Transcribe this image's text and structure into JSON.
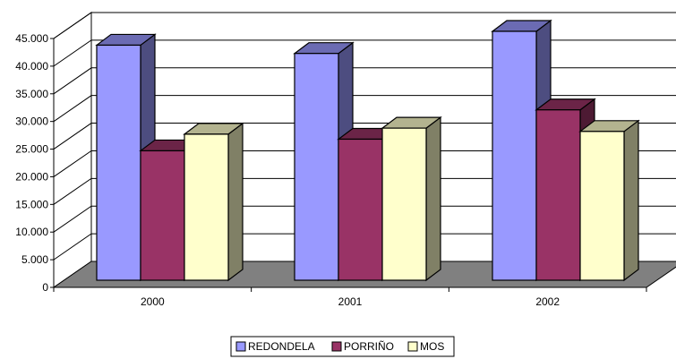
{
  "chart_data": {
    "type": "bar",
    "categories": [
      "2000",
      "2001",
      "2002"
    ],
    "series": [
      {
        "name": "REDONDELA",
        "values": [
          42500,
          41000,
          45000
        ],
        "color": "#9999FF"
      },
      {
        "name": "PORRIÑO",
        "values": [
          23400,
          25500,
          30800
        ],
        "color": "#993366"
      },
      {
        "name": "MOS",
        "values": [
          26400,
          27500,
          26900
        ],
        "color": "#FFFFCC"
      }
    ],
    "ylim": [
      0,
      45000
    ],
    "yticks": [
      "0",
      "5.000",
      "10.000",
      "15.000",
      "20.000",
      "25.000",
      "30.000",
      "35.000",
      "40.000",
      "45.000"
    ],
    "grid": true,
    "legend_position": "bottom",
    "style": "3d-clustered-column",
    "colors": {
      "wall": "#FFFFFF",
      "floor": "#808080",
      "gridline": "#000000"
    }
  }
}
